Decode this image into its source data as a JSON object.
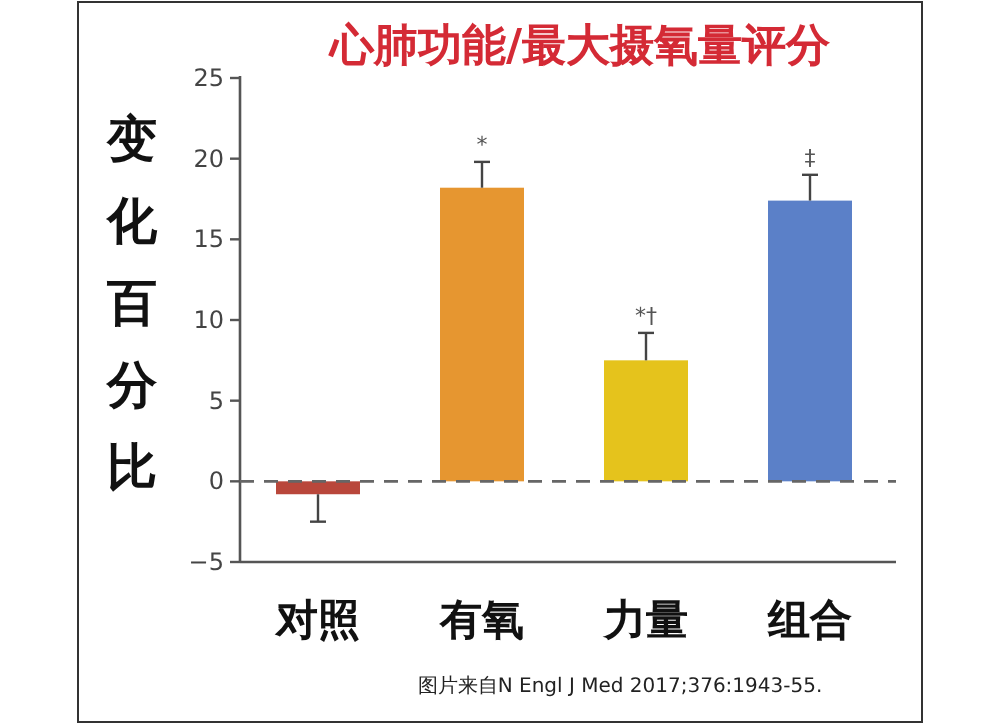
{
  "chart_data": {
    "type": "bar",
    "title": "心肺功能/最大摄氧量评分",
    "ylabel": "变化百分比",
    "categories": [
      "对照",
      "有氧",
      "力量",
      "组合"
    ],
    "values": [
      -0.8,
      18.2,
      7.5,
      17.4
    ],
    "colors": [
      "#b9473b",
      "#e69630",
      "#e5c31c",
      "#5b80c8"
    ],
    "errors": [
      1.7,
      1.6,
      1.7,
      1.6
    ],
    "ylim": [
      -5,
      25
    ],
    "yticks": [
      -5,
      0,
      5,
      10,
      15,
      20,
      25
    ],
    "ref_lines": [
      {
        "axis": "y",
        "value": 0,
        "color": "#666666",
        "line_style": "dashed"
      }
    ],
    "annotations": [
      {
        "text": "*",
        "x": "有氧",
        "y": 19.8
      },
      {
        "text": "*†",
        "x": "力量",
        "y": 9.2
      },
      {
        "text": "‡",
        "x": "组合",
        "y": 19.0
      },
      "图片来自N Engl J Med 2017;376:1943-55."
    ],
    "grid": false
  }
}
